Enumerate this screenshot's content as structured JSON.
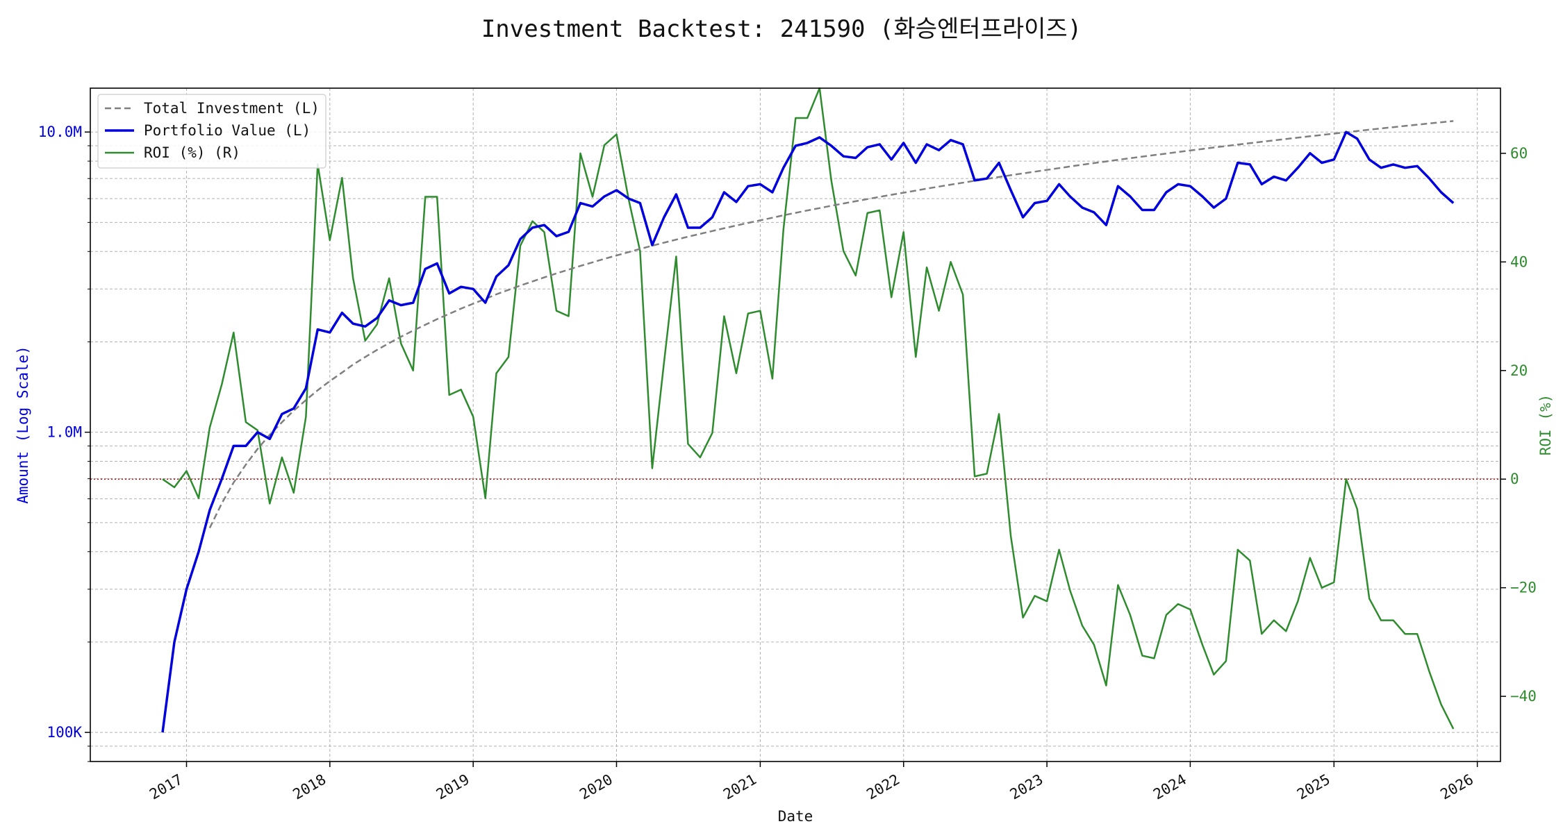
{
  "chart_data": {
    "type": "line",
    "title": "Investment Backtest: 241590 (화승엔터프라이즈)",
    "xlabel": "Date",
    "ylabel_left": "Amount (Log Scale)",
    "ylabel_right": "ROI (%)",
    "y_left_scale": "log",
    "y_left_lim": [
      80000,
      14000000
    ],
    "y_right_lim": [
      -52,
      72
    ],
    "x_lim": [
      "2016-05-01",
      "2026-03-01"
    ],
    "grid": true,
    "legend_position": "top-left",
    "reference_line": {
      "axis": "right",
      "value": 0,
      "color": "#cc0000",
      "style": "dotted"
    },
    "y_left_ticks": [
      {
        "value": 100000,
        "label": "100K"
      },
      {
        "value": 1000000,
        "label": "1.0M"
      },
      {
        "value": 10000000,
        "label": "10.0M"
      }
    ],
    "y_right_ticks": [
      -40,
      -20,
      0,
      20,
      40,
      60
    ],
    "x_ticks": [
      {
        "date": "2017-01-01",
        "label": "2017"
      },
      {
        "date": "2018-01-01",
        "label": "2018"
      },
      {
        "date": "2019-01-01",
        "label": "2019"
      },
      {
        "date": "2020-01-01",
        "label": "2020"
      },
      {
        "date": "2021-01-01",
        "label": "2021"
      },
      {
        "date": "2022-01-01",
        "label": "2022"
      },
      {
        "date": "2023-01-01",
        "label": "2023"
      },
      {
        "date": "2024-01-01",
        "label": "2024"
      },
      {
        "date": "2025-01-01",
        "label": "2025"
      },
      {
        "date": "2026-01-01",
        "label": "2026"
      }
    ],
    "x": [
      "2016-11-01",
      "2016-12-01",
      "2017-01-01",
      "2017-02-01",
      "2017-03-01",
      "2017-04-01",
      "2017-05-01",
      "2017-06-01",
      "2017-07-01",
      "2017-08-01",
      "2017-09-01",
      "2017-10-01",
      "2017-11-01",
      "2017-12-01",
      "2018-01-01",
      "2018-02-01",
      "2018-03-01",
      "2018-04-01",
      "2018-05-01",
      "2018-06-01",
      "2018-07-01",
      "2018-08-01",
      "2018-09-01",
      "2018-10-01",
      "2018-11-01",
      "2018-12-01",
      "2019-01-01",
      "2019-02-01",
      "2019-03-01",
      "2019-04-01",
      "2019-05-01",
      "2019-06-01",
      "2019-07-01",
      "2019-08-01",
      "2019-09-01",
      "2019-10-01",
      "2019-11-01",
      "2019-12-01",
      "2020-01-01",
      "2020-02-01",
      "2020-03-01",
      "2020-04-01",
      "2020-05-01",
      "2020-06-01",
      "2020-07-01",
      "2020-08-01",
      "2020-09-01",
      "2020-10-01",
      "2020-11-01",
      "2020-12-01",
      "2021-01-01",
      "2021-02-01",
      "2021-03-01",
      "2021-04-01",
      "2021-05-01",
      "2021-06-01",
      "2021-07-01",
      "2021-08-01",
      "2021-09-01",
      "2021-10-01",
      "2021-11-01",
      "2021-12-01",
      "2022-01-01",
      "2022-02-01",
      "2022-03-01",
      "2022-04-01",
      "2022-05-01",
      "2022-06-01",
      "2022-07-01",
      "2022-08-01",
      "2022-09-01",
      "2022-10-01",
      "2022-11-01",
      "2022-12-01",
      "2023-01-01",
      "2023-02-01",
      "2023-03-01",
      "2023-04-01",
      "2023-05-01",
      "2023-06-01",
      "2023-07-01",
      "2023-08-01",
      "2023-09-01",
      "2023-10-01",
      "2023-11-01",
      "2023-12-01",
      "2024-01-01",
      "2024-02-01",
      "2024-03-01",
      "2024-04-01",
      "2024-05-01",
      "2024-06-01",
      "2024-07-01",
      "2024-08-01",
      "2024-09-01",
      "2024-10-01",
      "2024-11-01",
      "2024-12-01",
      "2025-01-01",
      "2025-02-01",
      "2025-03-01",
      "2025-04-01",
      "2025-05-01",
      "2025-06-01",
      "2025-07-01",
      "2025-08-01",
      "2025-09-01",
      "2025-10-01",
      "2025-11-01"
    ],
    "series": [
      {
        "name": "Total Investment (L)",
        "axis": "left",
        "color": "#7f7f7f",
        "style": "dashed",
        "values": [
          null,
          null,
          null,
          null,
          480000,
          580000,
          680000,
          780000,
          880000,
          980000,
          1080000,
          1180000,
          1280000,
          1380000,
          1480000,
          1580000,
          1680000,
          1780000,
          1880000,
          1980000,
          2080000,
          2180000,
          2280000,
          2380000,
          2480000,
          2580000,
          2680000,
          2780000,
          2880000,
          2980000,
          3080000,
          3180000,
          3280000,
          3380000,
          3480000,
          3580000,
          3680000,
          3780000,
          3880000,
          3980000,
          4080000,
          4180000,
          4280000,
          4380000,
          4480000,
          4580000,
          4680000,
          4780000,
          4880000,
          4980000,
          5080000,
          5180000,
          5280000,
          5380000,
          5480000,
          5580000,
          5680000,
          5780000,
          5880000,
          5980000,
          6080000,
          6180000,
          6280000,
          6380000,
          6480000,
          6580000,
          6680000,
          6780000,
          6880000,
          6980000,
          7080000,
          7180000,
          7280000,
          7380000,
          7480000,
          7580000,
          7680000,
          7780000,
          7880000,
          7980000,
          8080000,
          8180000,
          8280000,
          8380000,
          8480000,
          8580000,
          8680000,
          8780000,
          8880000,
          8980000,
          9080000,
          9180000,
          9280000,
          9380000,
          9480000,
          9580000,
          9680000,
          9780000,
          9880000,
          9980000,
          10080000,
          10180000,
          10280000,
          10380000,
          10480000,
          10580000,
          10680000,
          10780000,
          10880000
        ]
      },
      {
        "name": "Portfolio Value (L)",
        "axis": "left",
        "color": "#0000dd",
        "style": "solid",
        "values": [
          100000,
          200000,
          300000,
          400000,
          550000,
          700000,
          900000,
          900000,
          1000000,
          950000,
          1150000,
          1200000,
          1400000,
          2200000,
          2150000,
          2500000,
          2300000,
          2250000,
          2400000,
          2750000,
          2650000,
          2700000,
          3500000,
          3650000,
          2900000,
          3050000,
          3000000,
          2700000,
          3300000,
          3600000,
          4400000,
          4800000,
          4900000,
          4500000,
          4650000,
          5800000,
          5650000,
          6100000,
          6400000,
          6000000,
          5800000,
          4200000,
          5200000,
          6200000,
          4800000,
          4800000,
          5200000,
          6300000,
          5850000,
          6600000,
          6700000,
          6300000,
          7600000,
          9000000,
          9200000,
          9600000,
          9000000,
          8300000,
          8200000,
          8900000,
          9100000,
          8100000,
          9200000,
          7900000,
          9100000,
          8700000,
          9400000,
          9100000,
          6900000,
          7000000,
          7900000,
          6400000,
          5200000,
          5800000,
          5900000,
          6700000,
          6100000,
          5600000,
          5400000,
          4900000,
          6600000,
          6100000,
          5500000,
          5500000,
          6300000,
          6700000,
          6600000,
          6100000,
          5600000,
          6000000,
          7900000,
          7800000,
          6700000,
          7100000,
          6900000,
          7600000,
          8500000,
          7900000,
          8100000,
          10000000,
          9500000,
          8100000,
          7600000,
          7800000,
          7600000,
          7700000,
          7000000,
          6300000,
          5800000
        ]
      },
      {
        "name": "ROI (%) (R)",
        "axis": "right",
        "color": "#2e8b2e",
        "style": "solid",
        "values": [
          0,
          -1.5,
          1.5,
          -3.5,
          9.5,
          17.5,
          27,
          10.5,
          9,
          -4.5,
          4,
          -2.5,
          11.5,
          58,
          44,
          55.5,
          37,
          25.5,
          28.5,
          37,
          25,
          20,
          52,
          52,
          15.5,
          16.5,
          11.5,
          -3.5,
          19.5,
          22.5,
          43,
          47.5,
          45.5,
          31,
          30,
          60,
          52,
          61.5,
          63.5,
          51.5,
          42,
          2,
          21.5,
          41,
          6.5,
          4,
          8.5,
          30,
          19.5,
          30.5,
          31,
          18.5,
          46,
          66.5,
          66.5,
          72,
          55,
          42,
          37.5,
          49,
          49.5,
          33.5,
          45.5,
          22.5,
          39,
          31,
          40,
          34,
          0.5,
          1,
          12,
          -10.5,
          -25.5,
          -21.5,
          -22.5,
          -13,
          -20.5,
          -27,
          -30.5,
          -38,
          -19.5,
          -25,
          -32.5,
          -33,
          -25,
          -23,
          -24,
          -30.5,
          -36,
          -33.5,
          -13,
          -15,
          -28.5,
          -26,
          -28,
          -22.5,
          -14.5,
          -20,
          -19,
          0,
          -5.5,
          -22,
          -26,
          -26,
          -28.5,
          -28.5,
          -35.5,
          -41.5,
          -46
        ]
      }
    ]
  }
}
